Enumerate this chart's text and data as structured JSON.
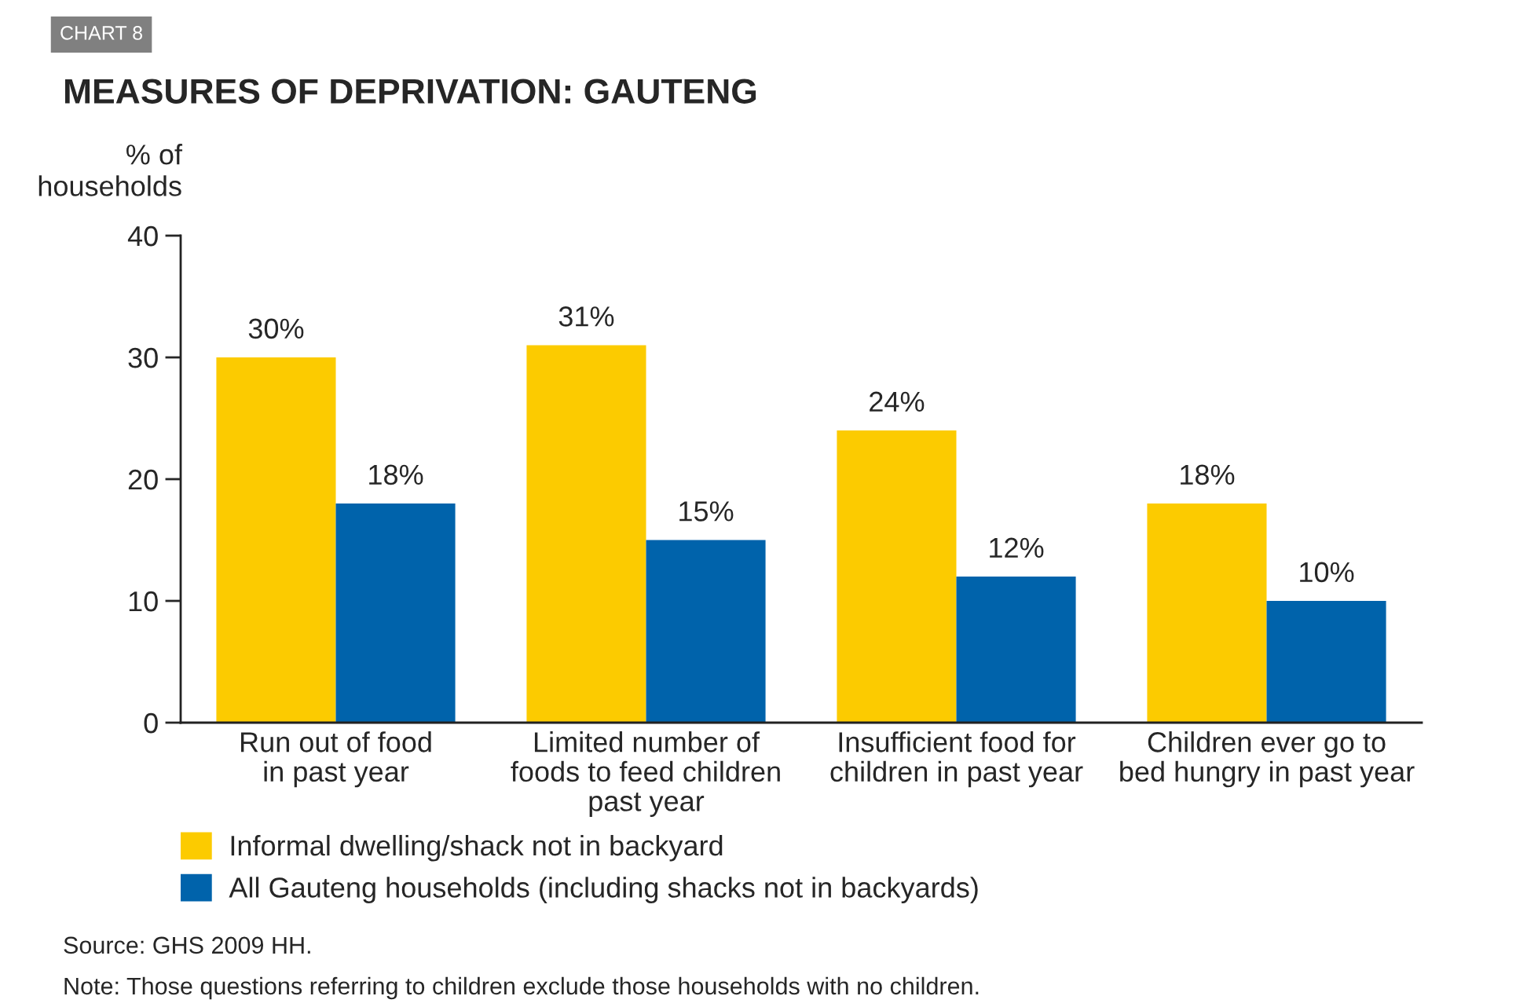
{
  "chart_data": {
    "type": "bar",
    "title": "MEASURES OF DEPRIVATION: GAUTENG",
    "ylabel": "% of\nhouseholds",
    "categories": [
      "Run out of food\nin past year",
      "Limited number of\nfoods to feed children\npast year",
      "Insufficient food for\nchildren in past year",
      "Children ever go to\nbed hungry in past year"
    ],
    "series": [
      {
        "name": "Informal dwelling/shack not in backyard",
        "color": "#fccb00",
        "values": [
          30,
          31,
          24,
          18
        ],
        "value_labels": [
          "30%",
          "31%",
          "24%",
          "18%"
        ]
      },
      {
        "name": "All Gauteng households (including shacks not in backyards)",
        "color": "#0063ab",
        "values": [
          18,
          15,
          12,
          10
        ],
        "value_labels": [
          "18%",
          "15%",
          "12%",
          "10%"
        ]
      }
    ],
    "ylim": [
      0,
      40
    ],
    "yticks": [
      0,
      10,
      20,
      30,
      40
    ],
    "grid": false,
    "legend": "bottom left",
    "annotations": [
      "CHART 8",
      "Source: GHS 2009 HH.",
      "Note: Those questions referring to children exclude those households with no children."
    ]
  }
}
